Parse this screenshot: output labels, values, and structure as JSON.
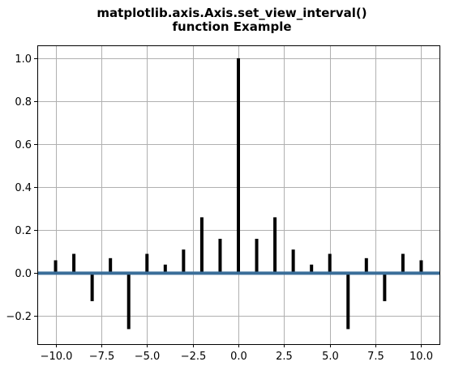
{
  "chart_data": {
    "type": "bar",
    "title_lines": [
      "matplotlib.axis.Axis.set_view_interval()",
      "function Example"
    ],
    "xlabel": "",
    "ylabel": "",
    "xlim": [
      -11.0,
      11.0
    ],
    "ylim": [
      -0.33,
      1.06
    ],
    "grid": true,
    "x_ticks": [
      -10.0,
      -7.5,
      -5.0,
      -2.5,
      0.0,
      2.5,
      5.0,
      7.5,
      10.0
    ],
    "x_tick_labels": [
      "−10.0",
      "−7.5",
      "−5.0",
      "−2.5",
      "0.0",
      "2.5",
      "5.0",
      "7.5",
      "10.0"
    ],
    "y_ticks": [
      -0.2,
      0.0,
      0.2,
      0.4,
      0.6,
      0.8,
      1.0
    ],
    "y_tick_labels": [
      "−0.2",
      "0.0",
      "0.2",
      "0.4",
      "0.6",
      "0.8",
      "1.0"
    ],
    "x": [
      -10,
      -9,
      -8,
      -7,
      -6,
      -5,
      -4,
      -3,
      -2,
      -1,
      0,
      1,
      2,
      3,
      4,
      5,
      6,
      7,
      8,
      9,
      10
    ],
    "values": [
      0.06,
      0.09,
      -0.13,
      0.07,
      -0.26,
      0.09,
      0.04,
      0.11,
      0.26,
      0.16,
      1.0,
      0.16,
      0.26,
      0.11,
      0.04,
      0.09,
      -0.26,
      0.07,
      -0.13,
      0.09,
      0.06
    ],
    "bar_color": "#000000",
    "baseline_y": 0.0,
    "baseline_color": "#3a6e99"
  }
}
